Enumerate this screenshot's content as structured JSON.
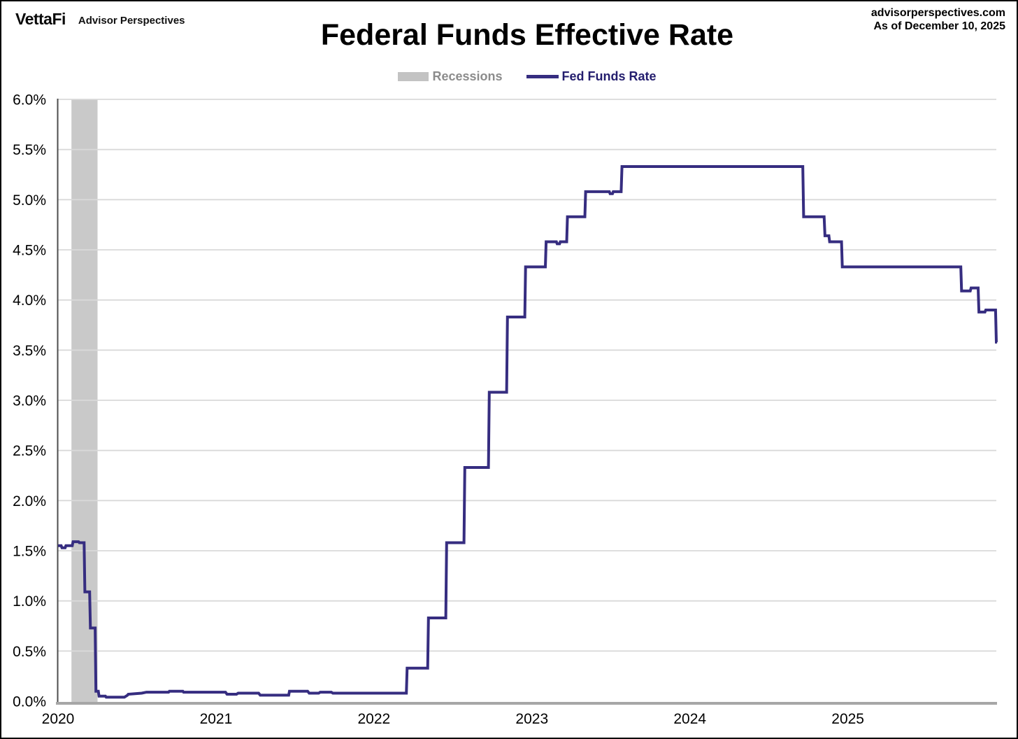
{
  "header": {
    "logo_text": "VettaFi",
    "logo_subtext": "Advisor Perspectives",
    "source_line1": "advisorperspectives.com",
    "source_line2": "As of December 10, 2025",
    "title": "Federal Funds Effective Rate"
  },
  "legend": {
    "recessions_label": "Recessions",
    "series_label": "Fed Funds Rate"
  },
  "colors": {
    "series_line": "#362d80",
    "recession_band": "#c9c9c9",
    "gridline": "#d9d9d9",
    "x_axis_line": "#a6a6a6",
    "y_axis_line": "#4d4d4d",
    "recessions_label_text": "#8c8c8c",
    "series_label_text": "#241e6e",
    "tick_label_text": "#000000"
  },
  "chart_data": {
    "type": "line",
    "title": "Federal Funds Effective Rate",
    "xlabel": "",
    "ylabel": "",
    "x_ticks": [
      "2020",
      "2021",
      "2022",
      "2023",
      "2024",
      "2025"
    ],
    "x_tick_years": [
      2020,
      2021,
      2022,
      2023,
      2024,
      2025
    ],
    "x_range": [
      2020.0,
      2025.94
    ],
    "y_ticks": [
      "0.0%",
      "0.5%",
      "1.0%",
      "1.5%",
      "2.0%",
      "2.5%",
      "3.0%",
      "3.5%",
      "4.0%",
      "4.5%",
      "5.0%",
      "5.5%",
      "6.0%"
    ],
    "y_tick_values": [
      0.0,
      0.5,
      1.0,
      1.5,
      2.0,
      2.5,
      3.0,
      3.5,
      4.0,
      4.5,
      5.0,
      5.5,
      6.0
    ],
    "ylim": [
      0.0,
      6.0
    ],
    "grid": true,
    "legend_position": "top",
    "recession_bands": [
      {
        "start": 2020.085,
        "end": 2020.25
      }
    ],
    "series": [
      {
        "name": "Fed Funds Rate",
        "unit": "percent",
        "points": [
          [
            2020.0,
            1.55
          ],
          [
            2020.02,
            1.55
          ],
          [
            2020.025,
            1.53
          ],
          [
            2020.045,
            1.53
          ],
          [
            2020.05,
            1.55
          ],
          [
            2020.09,
            1.55
          ],
          [
            2020.095,
            1.59
          ],
          [
            2020.13,
            1.59
          ],
          [
            2020.135,
            1.58
          ],
          [
            2020.165,
            1.58
          ],
          [
            2020.17,
            1.09
          ],
          [
            2020.2,
            1.09
          ],
          [
            2020.205,
            0.73
          ],
          [
            2020.235,
            0.73
          ],
          [
            2020.24,
            0.1
          ],
          [
            2020.255,
            0.1
          ],
          [
            2020.26,
            0.05
          ],
          [
            2020.3,
            0.05
          ],
          [
            2020.305,
            0.04
          ],
          [
            2020.42,
            0.04
          ],
          [
            2020.44,
            0.06
          ],
          [
            2020.445,
            0.07
          ],
          [
            2020.53,
            0.08
          ],
          [
            2020.56,
            0.09
          ],
          [
            2020.7,
            0.09
          ],
          [
            2020.705,
            0.1
          ],
          [
            2020.79,
            0.1
          ],
          [
            2020.795,
            0.09
          ],
          [
            2021.06,
            0.09
          ],
          [
            2021.07,
            0.07
          ],
          [
            2021.13,
            0.07
          ],
          [
            2021.14,
            0.08
          ],
          [
            2021.27,
            0.08
          ],
          [
            2021.28,
            0.06
          ],
          [
            2021.46,
            0.06
          ],
          [
            2021.465,
            0.1
          ],
          [
            2021.58,
            0.1
          ],
          [
            2021.59,
            0.08
          ],
          [
            2021.65,
            0.08
          ],
          [
            2021.66,
            0.09
          ],
          [
            2021.73,
            0.09
          ],
          [
            2021.74,
            0.08
          ],
          [
            2022.205,
            0.08
          ],
          [
            2022.21,
            0.33
          ],
          [
            2022.34,
            0.33
          ],
          [
            2022.345,
            0.83
          ],
          [
            2022.455,
            0.83
          ],
          [
            2022.46,
            1.58
          ],
          [
            2022.57,
            1.58
          ],
          [
            2022.575,
            2.33
          ],
          [
            2022.725,
            2.33
          ],
          [
            2022.73,
            3.08
          ],
          [
            2022.84,
            3.08
          ],
          [
            2022.845,
            3.83
          ],
          [
            2022.955,
            3.83
          ],
          [
            2022.96,
            4.33
          ],
          [
            2023.085,
            4.33
          ],
          [
            2023.09,
            4.58
          ],
          [
            2023.155,
            4.58
          ],
          [
            2023.16,
            4.56
          ],
          [
            2023.175,
            4.56
          ],
          [
            2023.18,
            4.58
          ],
          [
            2023.22,
            4.58
          ],
          [
            2023.225,
            4.83
          ],
          [
            2023.335,
            4.83
          ],
          [
            2023.34,
            5.08
          ],
          [
            2023.49,
            5.08
          ],
          [
            2023.495,
            5.06
          ],
          [
            2023.51,
            5.06
          ],
          [
            2023.515,
            5.08
          ],
          [
            2023.565,
            5.08
          ],
          [
            2023.57,
            5.33
          ],
          [
            2024.715,
            5.33
          ],
          [
            2024.72,
            4.83
          ],
          [
            2024.85,
            4.83
          ],
          [
            2024.855,
            4.64
          ],
          [
            2024.88,
            4.64
          ],
          [
            2024.885,
            4.58
          ],
          [
            2024.96,
            4.58
          ],
          [
            2024.965,
            4.33
          ],
          [
            2025.715,
            4.33
          ],
          [
            2025.72,
            4.09
          ],
          [
            2025.775,
            4.09
          ],
          [
            2025.78,
            4.12
          ],
          [
            2025.825,
            4.12
          ],
          [
            2025.83,
            3.88
          ],
          [
            2025.868,
            3.88
          ],
          [
            2025.873,
            3.9
          ],
          [
            2025.935,
            3.9
          ],
          [
            2025.94,
            3.58
          ],
          [
            2025.945,
            3.58
          ]
        ]
      }
    ]
  }
}
